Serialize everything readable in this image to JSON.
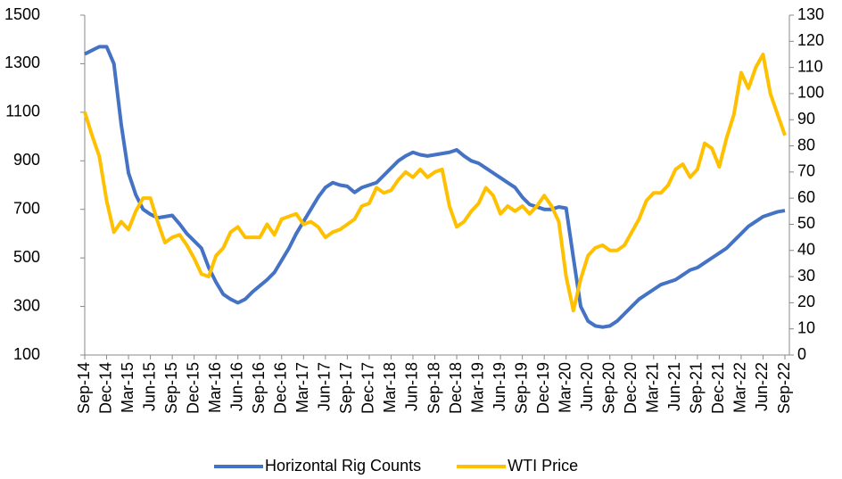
{
  "chart_data": {
    "type": "line",
    "categories": [
      "Sep-14",
      null,
      null,
      "Dec-14",
      null,
      null,
      "Mar-15",
      null,
      null,
      "Jun-15",
      null,
      null,
      "Sep-15",
      null,
      null,
      "Dec-15",
      null,
      null,
      "Mar-16",
      null,
      null,
      "Jun-16",
      null,
      null,
      "Sep-16",
      null,
      null,
      "Dec-16",
      null,
      null,
      "Mar-17",
      null,
      null,
      "Jun-17",
      null,
      null,
      "Sep-17",
      null,
      null,
      "Dec-17",
      null,
      null,
      "Mar-18",
      null,
      null,
      "Jun-18",
      null,
      null,
      "Sep-18",
      null,
      null,
      "Dec-18",
      null,
      null,
      "Mar-19",
      null,
      null,
      "Jun-19",
      null,
      null,
      "Sep-19",
      null,
      null,
      "Dec-19",
      null,
      null,
      "Mar-20",
      null,
      null,
      "Jun-20",
      null,
      null,
      "Sep-20",
      null,
      null,
      "Dec-20",
      null,
      null,
      "Mar-21",
      null,
      null,
      "Jun-21",
      null,
      null,
      "Sep-21",
      null,
      null,
      "Dec-21",
      null,
      null,
      "Mar-22",
      null,
      null,
      "Jun-22",
      null,
      null,
      "Sep-22"
    ],
    "series": [
      {
        "name": "Horizontal Rig Counts",
        "color": "#4472c4",
        "axis": "y",
        "values": [
          1340,
          1355,
          1370,
          1370,
          1300,
          1050,
          850,
          760,
          700,
          680,
          665,
          670,
          675,
          640,
          600,
          570,
          540,
          460,
          400,
          350,
          330,
          315,
          330,
          360,
          385,
          410,
          440,
          490,
          540,
          600,
          650,
          700,
          750,
          790,
          810,
          800,
          795,
          770,
          790,
          800,
          810,
          840,
          870,
          900,
          920,
          935,
          925,
          920,
          925,
          930,
          935,
          945,
          920,
          900,
          890,
          870,
          850,
          830,
          810,
          790,
          750,
          720,
          710,
          700,
          700,
          710,
          705,
          500,
          300,
          240,
          220,
          215,
          220,
          240,
          270,
          300,
          330,
          350,
          370,
          390,
          400,
          410,
          430,
          450,
          460,
          480,
          500,
          520,
          540,
          570,
          600,
          630,
          650,
          670,
          680,
          690,
          695
        ]
      },
      {
        "name": "WTI Price",
        "color": "#ffc000",
        "axis": "y2",
        "values": [
          93,
          84,
          76,
          59,
          47,
          51,
          48,
          55,
          60,
          60,
          51,
          43,
          45,
          46,
          42,
          37,
          31,
          30,
          38,
          41,
          47,
          49,
          45,
          45,
          45,
          50,
          46,
          52,
          53,
          54,
          50,
          51,
          49,
          45,
          47,
          48,
          50,
          52,
          57,
          58,
          64,
          62,
          63,
          67,
          70,
          68,
          71,
          68,
          70,
          71,
          57,
          49,
          51,
          55,
          58,
          64,
          61,
          54,
          57,
          55,
          57,
          54,
          57,
          61,
          57,
          51,
          30,
          17,
          29,
          38,
          41,
          42,
          40,
          40,
          42,
          47,
          52,
          59,
          62,
          62,
          65,
          71,
          73,
          68,
          71,
          81,
          79,
          72,
          83,
          92,
          108,
          102,
          110,
          115,
          100,
          92,
          84
        ]
      }
    ],
    "ylim": [
      100,
      1500
    ],
    "yticks": [
      100,
      300,
      500,
      700,
      900,
      1100,
      1300,
      1500
    ],
    "y2lim": [
      0,
      130
    ],
    "y2ticks": [
      0,
      10,
      20,
      30,
      40,
      50,
      60,
      70,
      80,
      90,
      100,
      110,
      120,
      130
    ],
    "grid": false,
    "legend": "bottom"
  }
}
